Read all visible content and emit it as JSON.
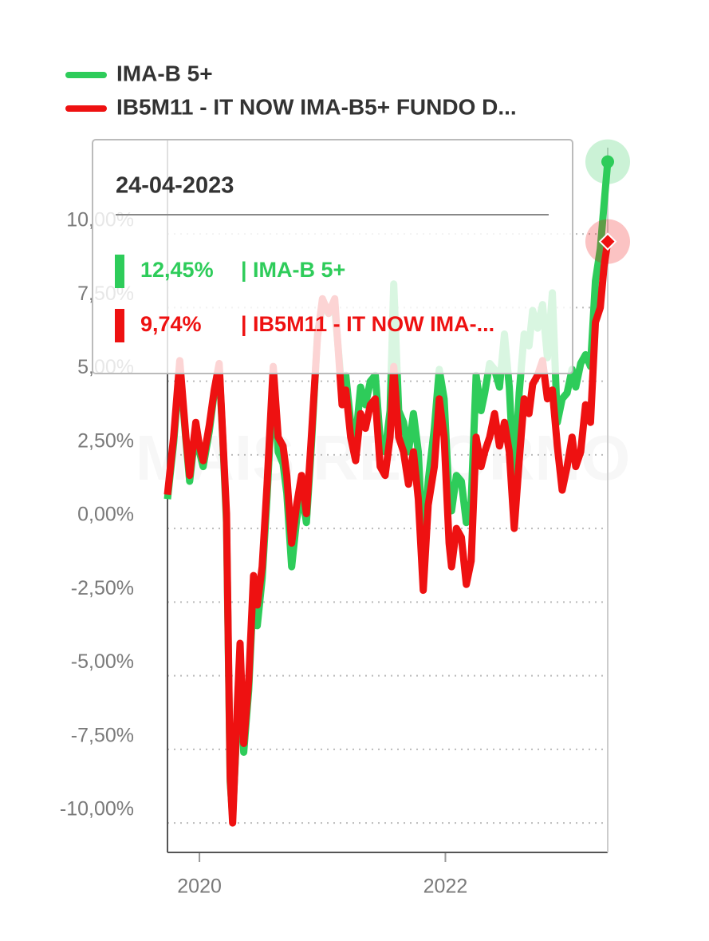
{
  "chart_data": {
    "type": "line",
    "watermark": "MAIS RETORNO",
    "x": [
      2019.74,
      2019.79,
      2019.84,
      2019.89,
      2019.92,
      2019.97,
      2020.0,
      2020.03,
      2020.08,
      2020.12,
      2020.16,
      2020.19,
      2020.22,
      2020.25,
      2020.27,
      2020.31,
      2020.33,
      2020.36,
      2020.4,
      2020.44,
      2020.47,
      2020.51,
      2020.55,
      2020.6,
      2020.64,
      2020.68,
      2020.71,
      2020.75,
      2020.79,
      2020.83,
      2020.87,
      2020.91,
      2020.96,
      2021.0,
      2021.05,
      2021.1,
      2021.16,
      2021.19,
      2021.23,
      2021.27,
      2021.31,
      2021.35,
      2021.39,
      2021.43,
      2021.47,
      2021.51,
      2021.55,
      2021.58,
      2021.62,
      2021.66,
      2021.7,
      2021.74,
      2021.78,
      2021.82,
      2021.86,
      2021.91,
      2021.95,
      2021.99,
      2022.03,
      2022.05,
      2022.09,
      2022.13,
      2022.17,
      2022.21,
      2022.25,
      2022.29,
      2022.32,
      2022.36,
      2022.4,
      2022.44,
      2022.48,
      2022.52,
      2022.56,
      2022.6,
      2022.64,
      2022.68,
      2022.71,
      2022.75,
      2022.79,
      2022.83,
      2022.87,
      2022.91,
      2022.95,
      2022.99,
      2023.03,
      2023.06,
      2023.1,
      2023.14,
      2023.18,
      2023.22,
      2023.26,
      2023.29,
      2023.32
    ],
    "series": [
      {
        "name": "IMA-B 5+",
        "color": "#2ecc5a",
        "marker": "circle",
        "values": [
          1.0,
          2.9,
          5.5,
          3.0,
          1.6,
          3.4,
          2.6,
          2.1,
          3.3,
          4.6,
          5.5,
          3.0,
          0.2,
          -8.6,
          -9.8,
          -6.2,
          -4.4,
          -7.6,
          -5.5,
          -2.0,
          -3.3,
          -1.7,
          1.1,
          5.2,
          2.6,
          2.2,
          1.2,
          -1.3,
          0.3,
          1.3,
          0.2,
          2.8,
          6.6,
          7.6,
          7.3,
          7.5,
          4.6,
          5.2,
          3.6,
          3.0,
          4.8,
          4.2,
          5.0,
          5.2,
          3.0,
          2.6,
          4.0,
          8.3,
          4.0,
          3.6,
          2.6,
          3.9,
          2.6,
          -0.8,
          1.6,
          3.4,
          5.4,
          4.4,
          1.0,
          0.6,
          1.8,
          1.6,
          0.2,
          0.9,
          5.2,
          4.0,
          4.6,
          5.6,
          5.4,
          4.8,
          6.6,
          4.8,
          1.5,
          4.6,
          6.6,
          6.2,
          7.4,
          6.8,
          7.6,
          5.8,
          8.0,
          3.6,
          4.4,
          4.6,
          5.4,
          4.8,
          5.6,
          5.9,
          5.5,
          8.4,
          9.5,
          11.0,
          12.45
        ]
      },
      {
        "name": "IB5M11 - IT NOW IMA-B5+ FUNDO D...",
        "color": "#ee1111",
        "marker": "diamond",
        "values": [
          1.15,
          3.1,
          5.7,
          3.1,
          1.8,
          3.6,
          2.8,
          2.3,
          3.5,
          4.7,
          5.6,
          3.1,
          0.5,
          -8.4,
          -10.0,
          -5.8,
          -3.9,
          -7.3,
          -5.2,
          -1.6,
          -2.6,
          -1.3,
          1.5,
          5.5,
          3.1,
          2.8,
          1.8,
          -0.5,
          0.8,
          1.8,
          0.5,
          3.1,
          6.5,
          7.8,
          7.3,
          7.8,
          4.2,
          4.7,
          3.1,
          2.3,
          3.9,
          3.4,
          4.2,
          4.4,
          2.1,
          1.8,
          3.1,
          5.5,
          3.1,
          2.6,
          1.5,
          2.6,
          1.0,
          -2.1,
          0.8,
          2.1,
          4.4,
          3.1,
          -0.5,
          -1.3,
          0.0,
          -0.3,
          -1.9,
          -1.1,
          3.1,
          2.1,
          2.6,
          3.1,
          3.9,
          2.8,
          3.6,
          2.6,
          0.0,
          2.3,
          4.4,
          3.9,
          4.9,
          5.2,
          5.7,
          4.4,
          4.7,
          2.8,
          1.3,
          2.1,
          3.1,
          2.1,
          2.6,
          4.2,
          3.6,
          7.0,
          7.5,
          8.9,
          9.74
        ]
      }
    ],
    "xlim": [
      2019.74,
      2023.32
    ],
    "xticks": [
      2020,
      2022
    ],
    "ylim": [
      -11,
      13.2
    ],
    "yticks": [
      {
        "value": 10,
        "label": "10,00%"
      },
      {
        "value": 7.5,
        "label": "7,50%"
      },
      {
        "value": 5,
        "label": "5,00%"
      },
      {
        "value": 2.5,
        "label": "2,50%"
      },
      {
        "value": 0,
        "label": "0,00%"
      },
      {
        "value": -2.5,
        "label": "-2,50%"
      },
      {
        "value": -5,
        "label": "-5,00%"
      },
      {
        "value": -7.5,
        "label": "-7,50%"
      },
      {
        "value": -10,
        "label": "-10,00%"
      }
    ],
    "grid": true,
    "legend": "top-left",
    "tooltip": {
      "date": "24-04-2023",
      "entries": [
        {
          "value": 12.45,
          "value_label": "12,45%",
          "name": "| IMA-B 5+"
        },
        {
          "value": 9.74,
          "value_label": "9,74%",
          "name": "| IB5M11 - IT NOW IMA-..."
        }
      ]
    }
  }
}
